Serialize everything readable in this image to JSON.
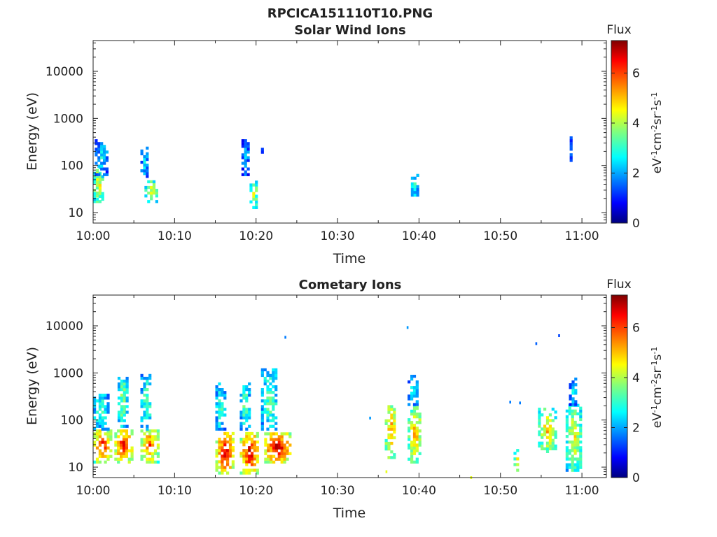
{
  "figure": {
    "title": "RPCICA151110T10.PNG"
  },
  "colorscale": "jet",
  "chart_data": [
    {
      "type": "heatmap",
      "title": "Solar Wind Ions",
      "xlabel": "Time",
      "ylabel": "Energy (eV)",
      "x_range_min": [
        0,
        63
      ],
      "x_ticks": [
        0,
        10,
        20,
        30,
        40,
        50,
        60
      ],
      "x_tick_labels": [
        "10:00",
        "10:10",
        "10:20",
        "10:30",
        "10:40",
        "10:50",
        "11:00"
      ],
      "y_scale": "log",
      "y_range": [
        6,
        45000
      ],
      "y_ticks": [
        10,
        100,
        1000,
        10000
      ],
      "y_tick_labels": [
        "10",
        "100",
        "1000",
        "10000"
      ],
      "colorbar": {
        "label": "Flux",
        "unit_label": "eV-1cm-2sr-1s-1",
        "range": [
          0,
          7.3
        ],
        "ticks": [
          0,
          2,
          4,
          6
        ],
        "tick_labels": [
          "0",
          "2",
          "4",
          "6"
        ]
      },
      "blobs": [
        {
          "t": [
            0.0,
            0.8
          ],
          "e": [
            14,
            90
          ],
          "flux": 5.2
        },
        {
          "t": [
            0.0,
            1.2
          ],
          "e": [
            18,
            60
          ],
          "flux": 4.6
        },
        {
          "t": [
            0.2,
            1.6
          ],
          "e": [
            60,
            320
          ],
          "flux": 2.6
        },
        {
          "t": [
            5.8,
            6.6
          ],
          "e": [
            55,
            220
          ],
          "flux": 2.7
        },
        {
          "t": [
            6.3,
            7.7
          ],
          "e": [
            14,
            45
          ],
          "flux": 4.6
        },
        {
          "t": [
            18.2,
            18.9
          ],
          "e": [
            60,
            330
          ],
          "flux": 2.4
        },
        {
          "t": [
            19.2,
            20.0
          ],
          "e": [
            12,
            45
          ],
          "flux": 4.4
        },
        {
          "t": [
            20.6,
            20.9
          ],
          "e": [
            180,
            400
          ],
          "flux": 1.8
        },
        {
          "t": [
            39.0,
            39.7
          ],
          "e": [
            22,
            60
          ],
          "flux": 3.4
        },
        {
          "t": [
            58.5,
            58.8
          ],
          "e": [
            120,
            380
          ],
          "flux": 2.2
        }
      ]
    },
    {
      "type": "heatmap",
      "title": "Cometary Ions",
      "xlabel": "Time",
      "ylabel": "Energy (eV)",
      "x_range_min": [
        0,
        63
      ],
      "x_ticks": [
        0,
        10,
        20,
        30,
        40,
        50,
        60
      ],
      "x_tick_labels": [
        "10:00",
        "10:10",
        "10:20",
        "10:30",
        "10:40",
        "10:50",
        "11:00"
      ],
      "y_scale": "log",
      "y_range": [
        6,
        45000
      ],
      "y_ticks": [
        10,
        100,
        1000,
        10000
      ],
      "y_tick_labels": [
        "10",
        "100",
        "1000",
        "10000"
      ],
      "colorbar": {
        "label": "Flux",
        "unit_label": "eV-1cm-2sr-1s-1",
        "range": [
          0,
          7.3
        ],
        "ticks": [
          0,
          2,
          4,
          6
        ],
        "tick_labels": [
          "0",
          "2",
          "4",
          "6"
        ]
      },
      "blobs": [
        {
          "t": [
            0.0,
            2.0
          ],
          "e": [
            12,
            60
          ],
          "flux": 6.4
        },
        {
          "t": [
            0.0,
            1.8
          ],
          "e": [
            60,
            350
          ],
          "flux": 3.4
        },
        {
          "t": [
            2.6,
            4.6
          ],
          "e": [
            12,
            60
          ],
          "flux": 6.6
        },
        {
          "t": [
            3.0,
            4.0
          ],
          "e": [
            60,
            1000
          ],
          "flux": 4.0
        },
        {
          "t": [
            5.8,
            7.8
          ],
          "e": [
            12,
            60
          ],
          "flux": 6.0
        },
        {
          "t": [
            5.8,
            7.0
          ],
          "e": [
            60,
            900
          ],
          "flux": 3.6
        },
        {
          "t": [
            15.0,
            17.2
          ],
          "e": [
            7,
            50
          ],
          "flux": 6.8
        },
        {
          "t": [
            15.0,
            16.0
          ],
          "e": [
            60,
            550
          ],
          "flux": 3.4
        },
        {
          "t": [
            18.0,
            20.2
          ],
          "e": [
            7,
            50
          ],
          "flux": 6.8
        },
        {
          "t": [
            18.0,
            19.0
          ],
          "e": [
            60,
            600
          ],
          "flux": 3.6
        },
        {
          "t": [
            21.0,
            24.0
          ],
          "e": [
            12,
            50
          ],
          "flux": 7.0
        },
        {
          "t": [
            20.6,
            22.4
          ],
          "e": [
            60,
            1100
          ],
          "flux": 3.6
        },
        {
          "t": [
            35.8,
            37.0
          ],
          "e": [
            15,
            200
          ],
          "flux": 5.6
        },
        {
          "t": [
            38.6,
            40.2
          ],
          "e": [
            12,
            200
          ],
          "flux": 5.2
        },
        {
          "t": [
            38.6,
            39.6
          ],
          "e": [
            200,
            800
          ],
          "flux": 3.0
        },
        {
          "t": [
            51.6,
            52.2
          ],
          "e": [
            7,
            22
          ],
          "flux": 4.8
        },
        {
          "t": [
            54.6,
            56.6
          ],
          "e": [
            20,
            160
          ],
          "flux": 5.0
        },
        {
          "t": [
            58.0,
            59.8
          ],
          "e": [
            8,
            200
          ],
          "flux": 4.6
        },
        {
          "t": [
            58.4,
            59.2
          ],
          "e": [
            200,
            700
          ],
          "flux": 2.6
        }
      ],
      "points": [
        {
          "t": 23.6,
          "e": 5700,
          "flux": 1.8
        },
        {
          "t": 38.6,
          "e": 9200,
          "flux": 2.0
        },
        {
          "t": 54.4,
          "e": 4200,
          "flux": 1.6
        },
        {
          "t": 57.2,
          "e": 6200,
          "flux": 1.4
        },
        {
          "t": 34.0,
          "e": 110,
          "flux": 2.0
        },
        {
          "t": 51.2,
          "e": 240,
          "flux": 1.8
        },
        {
          "t": 52.4,
          "e": 230,
          "flux": 1.8
        },
        {
          "t": 46.4,
          "e": 6,
          "flux": 4.4
        },
        {
          "t": 36.0,
          "e": 8,
          "flux": 4.4
        }
      ]
    }
  ]
}
